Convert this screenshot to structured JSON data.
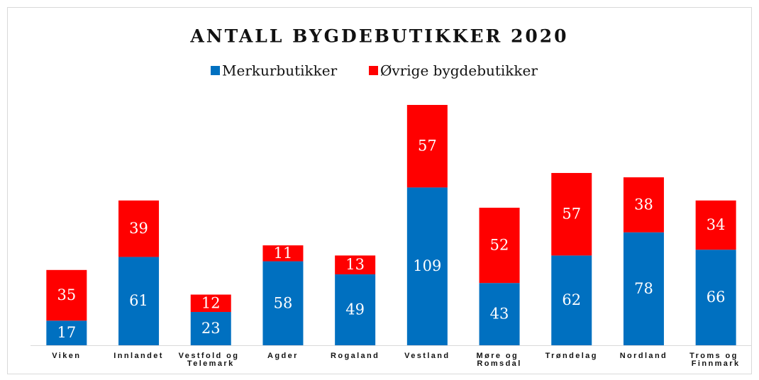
{
  "chart_data": {
    "type": "bar",
    "stacked": true,
    "title": "ANTALL BYGDEBUTIKKER 2020",
    "categories": [
      "Viken",
      "Innlandet",
      "Vestfold og Telemark",
      "Agder",
      "Rogaland",
      "Vestland",
      "Møre og Romsdal",
      "Trøndelag",
      "Nordland",
      "Troms og Finnmark"
    ],
    "series": [
      {
        "name": "Merkurbutikker",
        "color": "#0070c0",
        "values": [
          17,
          61,
          23,
          58,
          49,
          109,
          43,
          62,
          78,
          66
        ]
      },
      {
        "name": "Øvrige bygdebutikker",
        "color": "#ff0000",
        "values": [
          35,
          39,
          12,
          11,
          13,
          57,
          52,
          57,
          38,
          34
        ]
      }
    ],
    "legend": "top"
  }
}
